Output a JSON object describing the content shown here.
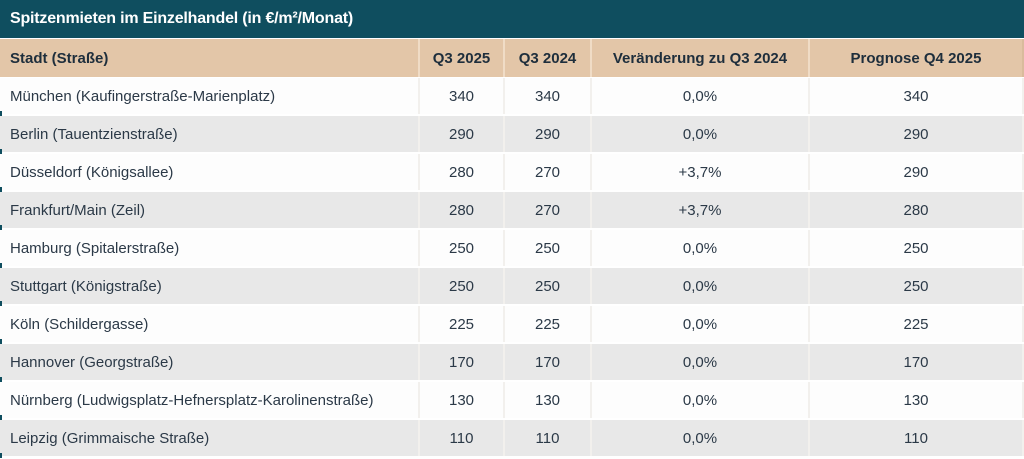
{
  "title": "Spitzenmieten im Einzelhandel (in €/m²/Monat)",
  "colors": {
    "title_bar_bg": "#0f4e5f",
    "title_text": "#ffffff",
    "column_header_bg": "#e3c6a8",
    "row_bg": "#fdfdfd",
    "row_alt_bg": "#e8e8e8",
    "cell_text": "#2b3947",
    "header_text": "#1e2e3c"
  },
  "chart_data": {
    "type": "table",
    "title": "Spitzenmieten im Einzelhandel (in €/m²/Monat)",
    "unit": "€/m²/Monat",
    "columns": [
      "Stadt (Straße)",
      "Q3 2025",
      "Q3 2024",
      "Veränderung zu Q3 2024",
      "Prognose Q4 2025"
    ],
    "rows": [
      [
        "München (Kaufingerstraße-Marienplatz)",
        "340",
        "340",
        "0,0%",
        "340"
      ],
      [
        "Berlin (Tauentzienstraße)",
        "290",
        "290",
        "0,0%",
        "290"
      ],
      [
        "Düsseldorf (Königsallee)",
        "280",
        "270",
        "+3,7%",
        "290"
      ],
      [
        "Frankfurt/Main (Zeil)",
        "280",
        "270",
        "+3,7%",
        "280"
      ],
      [
        "Hamburg (Spitalerstraße)",
        "250",
        "250",
        "0,0%",
        "250"
      ],
      [
        "Stuttgart (Königstraße)",
        "250",
        "250",
        "0,0%",
        "250"
      ],
      [
        "Köln (Schildergasse)",
        "225",
        "225",
        "0,0%",
        "225"
      ],
      [
        "Hannover (Georgstraße)",
        "170",
        "170",
        "0,0%",
        "170"
      ],
      [
        "Nürnberg (Ludwigsplatz-Hefnersplatz-Karolinenstraße)",
        "130",
        "130",
        "0,0%",
        "130"
      ],
      [
        "Leipzig (Grimmaische Straße)",
        "110",
        "110",
        "0,0%",
        "110"
      ]
    ]
  }
}
